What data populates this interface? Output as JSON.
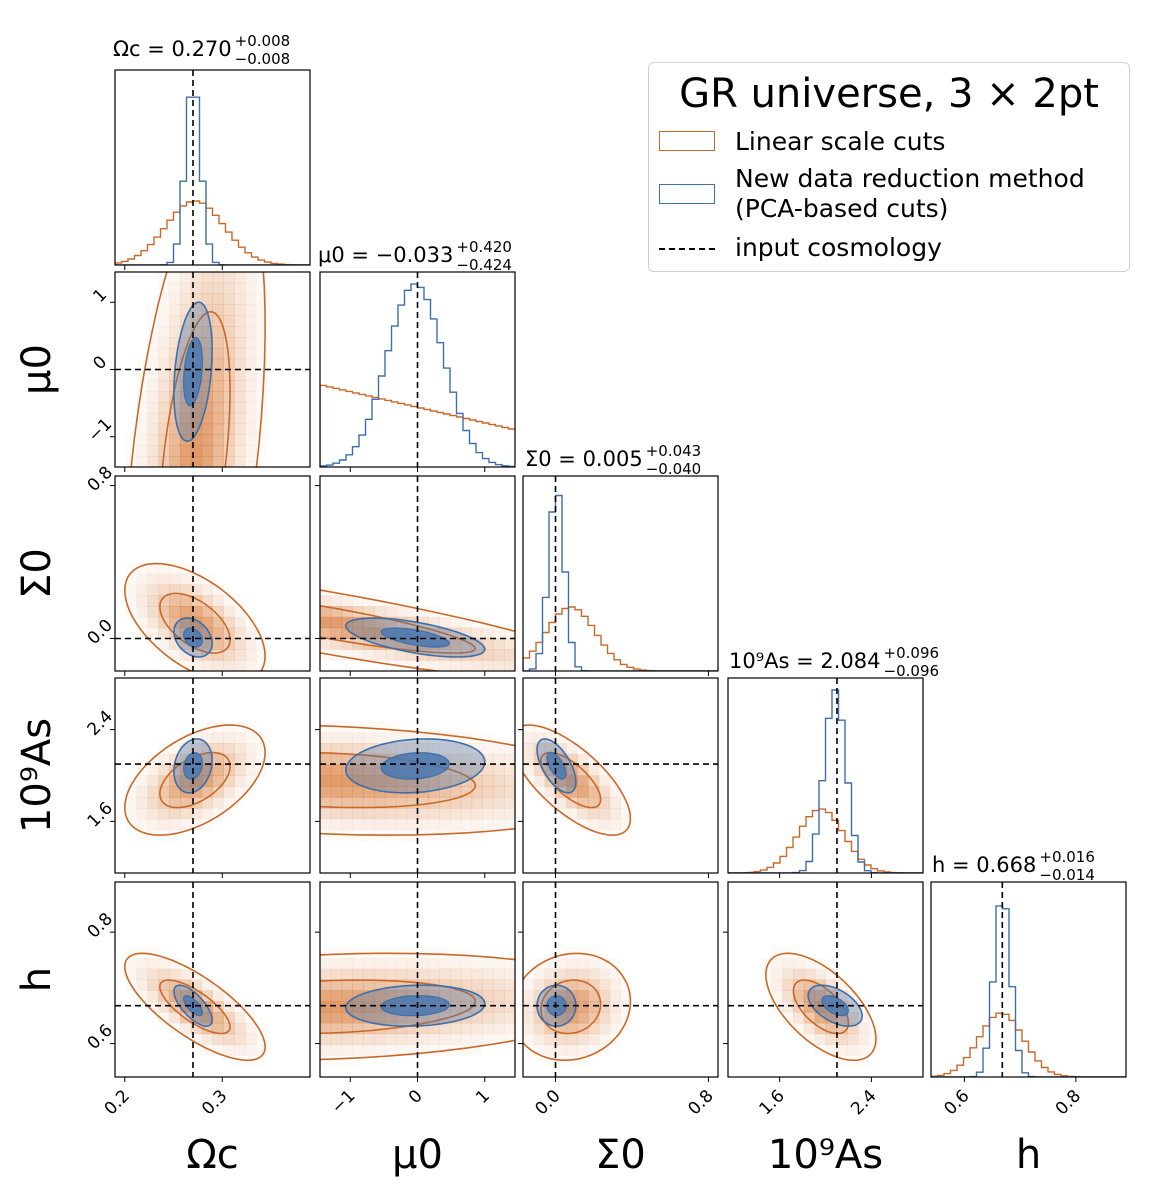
{
  "chart_data": {
    "type": "corner",
    "title": "GR universe, 3 × 2pt",
    "parameters": [
      {
        "key": "Om",
        "label": "Ωc",
        "mean": 0.27,
        "plus": 0.008,
        "minus": 0.008,
        "truth": 0.27,
        "range": [
          0.19,
          0.39
        ],
        "ticks": [
          0.2,
          0.3
        ],
        "tick_labels": [
          "0.2",
          "0.3"
        ],
        "linear_sigma": 0.03
      },
      {
        "key": "mu",
        "label": "μ0",
        "mean": -0.033,
        "plus": 0.42,
        "minus": 0.424,
        "truth": 0.0,
        "range": [
          -1.45,
          1.45
        ],
        "ticks": [
          -1,
          0,
          1
        ],
        "tick_labels": [
          "−1",
          "0",
          "1"
        ],
        "linear_sigma": 1.8
      },
      {
        "key": "Sig",
        "label": "Σ0",
        "mean": 0.005,
        "plus": 0.043,
        "minus": 0.04,
        "truth": 0.0,
        "range": [
          -0.17,
          0.85
        ],
        "ticks": [
          0.0,
          0.8
        ],
        "tick_labels": [
          "0.0",
          "0.8"
        ],
        "linear_sigma": 0.13
      },
      {
        "key": "As",
        "label": "10⁹As",
        "mean": 2.084,
        "plus": 0.096,
        "minus": 0.096,
        "truth": 2.1,
        "range": [
          1.15,
          2.85
        ],
        "ticks": [
          1.6,
          2.4
        ],
        "tick_labels": [
          "1.6",
          "2.4"
        ],
        "linear_sigma": 0.2
      },
      {
        "key": "h",
        "label": "h",
        "mean": 0.668,
        "plus": 0.016,
        "minus": 0.014,
        "truth": 0.668,
        "range": [
          0.54,
          0.89
        ],
        "ticks": [
          0.6,
          0.8
        ],
        "tick_labels": [
          "0.6",
          "0.8"
        ],
        "linear_sigma": 0.04
      }
    ],
    "panel_titles": [
      {
        "name": "Ωc",
        "value": "= 0.270",
        "plus": "+0.008",
        "minus": "−0.008"
      },
      {
        "name": "μ0",
        "value": "= −0.033",
        "plus": "+0.420",
        "minus": "−0.424"
      },
      {
        "name": "Σ0",
        "value": "= 0.005",
        "plus": "+0.043",
        "minus": "−0.040"
      },
      {
        "name": "10⁹As",
        "value": "= 2.084",
        "plus": "+0.096",
        "minus": "−0.096"
      },
      {
        "name": "h",
        "value": "= 0.668",
        "plus": "+0.016",
        "minus": "−0.014"
      }
    ],
    "series": [
      {
        "name": "Linear scale cuts",
        "color": "#c8692a",
        "fill": "#d77b3a"
      },
      {
        "name": "New data reduction method (PCA-based cuts)",
        "color": "#3e6fa8",
        "fill": "#4a78b0"
      }
    ],
    "truth_line": {
      "name": "input cosmology",
      "color": "#000000",
      "style": "dashed"
    }
  },
  "legend": {
    "title": "GR universe, 3 × 2pt",
    "items": [
      {
        "label": "Linear scale cuts",
        "color": "#c8692a"
      },
      {
        "label": "New data reduction method",
        "label2": " (PCA-based cuts)",
        "color": "#3e6fa8"
      },
      {
        "label": "input cosmology",
        "color": "#000000"
      }
    ]
  }
}
